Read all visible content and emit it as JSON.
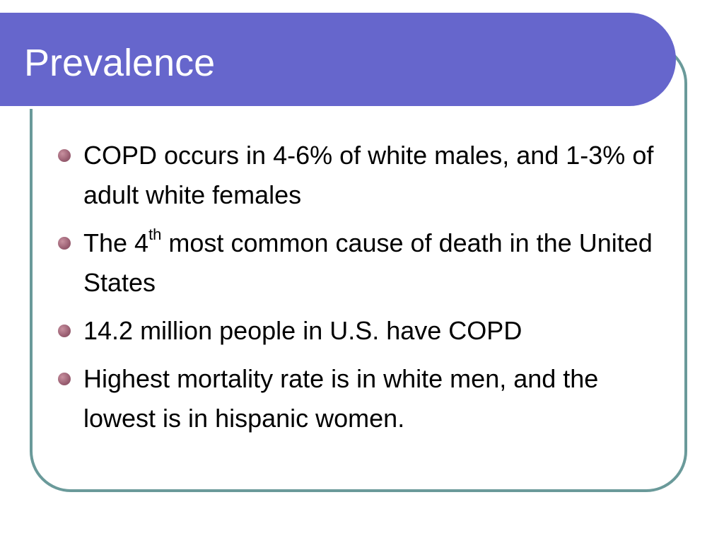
{
  "slide": {
    "title": "Prevalence",
    "bullets": [
      {
        "text": "COPD occurs in 4-6% of white males, and 1-3% of adult white females"
      },
      {
        "prefix": "The 4",
        "superscript": "th",
        "suffix": " most common cause of death in the United States"
      },
      {
        "text": "14.2 million people in U.S. have COPD"
      },
      {
        "text": "Highest mortality rate is in white men, and the lowest is in hispanic women."
      }
    ]
  },
  "colors": {
    "title_bar": "#6666cc",
    "frame_border": "#6a9a9a",
    "bullet": "#a0677a",
    "title_text": "#ffffff",
    "body_text": "#000000"
  }
}
